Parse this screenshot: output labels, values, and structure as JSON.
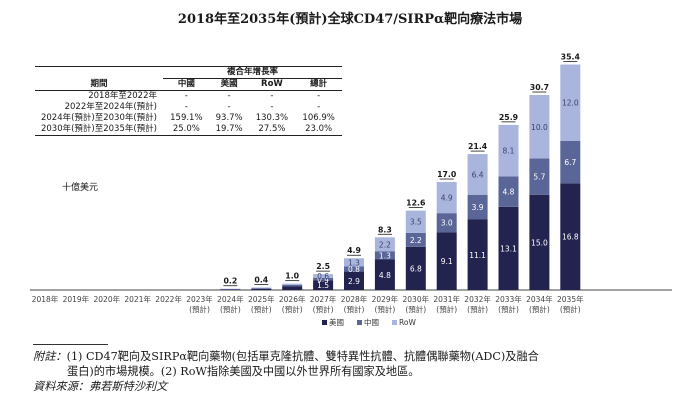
{
  "title": "2018年至2035年(預計)全球CD47/SIRPα靶向療法市場",
  "cagr_table": {
    "group_header": "複合年增長率",
    "period_header": "期間",
    "columns": [
      "中國",
      "美國",
      "RoW",
      "總計"
    ],
    "rows": [
      {
        "period": "2018年至2022年",
        "values": [
          "-",
          "-",
          "-",
          "-"
        ]
      },
      {
        "period": "2022年至2024年(預計)",
        "values": [
          "-",
          "-",
          "-",
          "-"
        ]
      },
      {
        "period": "2024年(預計)至2030年(預計)",
        "values": [
          "159.1%",
          "93.7%",
          "130.3%",
          "106.9%"
        ]
      },
      {
        "period": "2030年(預計)至2035年(預計)",
        "values": [
          "25.0%",
          "19.7%",
          "27.5%",
          "23.0%"
        ]
      }
    ]
  },
  "unit_label": "十億美元",
  "chart_data": {
    "type": "bar",
    "stacked": true,
    "title": "2018年至2035年(預計)全球CD47/SIRPα靶向療法市場",
    "ylabel": "十億美元",
    "categories": [
      "2018年",
      "2019年",
      "2020年",
      "2021年",
      "2022年",
      "2023年",
      "2024年",
      "2025年",
      "2026年",
      "2027年",
      "2028年",
      "2029年",
      "2030年",
      "2031年",
      "2032年",
      "2033年",
      "2034年",
      "2035年"
    ],
    "category_sublabels": [
      "",
      "",
      "",
      "",
      "",
      "(預計)",
      "(預計)",
      "(預計)",
      "(預計)",
      "(預計)",
      "(預計)",
      "(預計)",
      "(預計)",
      "(預計)",
      "(預計)",
      "(預計)",
      "(預計)",
      "(預計)"
    ],
    "series": [
      {
        "name": "美國",
        "color": "#22234f",
        "values": [
          0,
          0,
          0,
          0,
          0,
          0,
          0.1,
          0.2,
          0.6,
          1.5,
          2.9,
          4.8,
          6.8,
          9.1,
          11.1,
          13.1,
          15.0,
          16.8
        ],
        "labels": [
          "",
          "",
          "",
          "",
          "",
          "",
          "",
          "",
          "",
          "1.5",
          "2.9",
          "4.8",
          "6.8",
          "9.1",
          "11.1",
          "13.1",
          "15.0",
          "16.8"
        ]
      },
      {
        "name": "中國",
        "color": "#5a6698",
        "values": [
          0,
          0,
          0,
          0,
          0,
          0,
          0.05,
          0.1,
          0.2,
          0.4,
          0.8,
          1.3,
          2.2,
          3.0,
          3.9,
          4.8,
          5.7,
          6.7
        ],
        "labels": [
          "",
          "",
          "",
          "",
          "",
          "",
          "",
          "",
          "",
          "0.4",
          "0.8",
          "1.3",
          "2.2",
          "3.0",
          "3.9",
          "4.8",
          "5.7",
          "6.7"
        ]
      },
      {
        "name": "RoW",
        "color": "#aab5dd",
        "values": [
          0,
          0,
          0,
          0,
          0,
          0,
          0.05,
          0.1,
          0.2,
          0.6,
          1.3,
          2.2,
          3.5,
          4.9,
          6.4,
          8.1,
          10.0,
          12.0
        ],
        "labels": [
          "",
          "",
          "",
          "",
          "",
          "",
          "",
          "",
          "",
          "0.6",
          "1.3",
          "2.2",
          "3.5",
          "4.9",
          "6.4",
          "8.1",
          "10.0",
          "12.0"
        ]
      }
    ],
    "totals": [
      "",
      "",
      "",
      "",
      "",
      "",
      "0.2",
      "0.4",
      "1.0",
      "2.5",
      "4.9",
      "8.3",
      "12.6",
      "17.0",
      "21.4",
      "25.9",
      "30.7",
      "35.4"
    ],
    "ylim": [
      0,
      37
    ],
    "legend_position": "bottom-center"
  },
  "footnote": {
    "lead": "附註：",
    "line1": "(1) CD47靶向及SIRPα靶向藥物(包括單克隆抗體、雙特異性抗體、抗體偶聯藥物(ADC)及融合",
    "line2": "蛋白)的市場規模。(2) RoW指除美國及中國以外世界所有國家及地區。",
    "source": "資料來源：弗若斯特沙利文"
  }
}
